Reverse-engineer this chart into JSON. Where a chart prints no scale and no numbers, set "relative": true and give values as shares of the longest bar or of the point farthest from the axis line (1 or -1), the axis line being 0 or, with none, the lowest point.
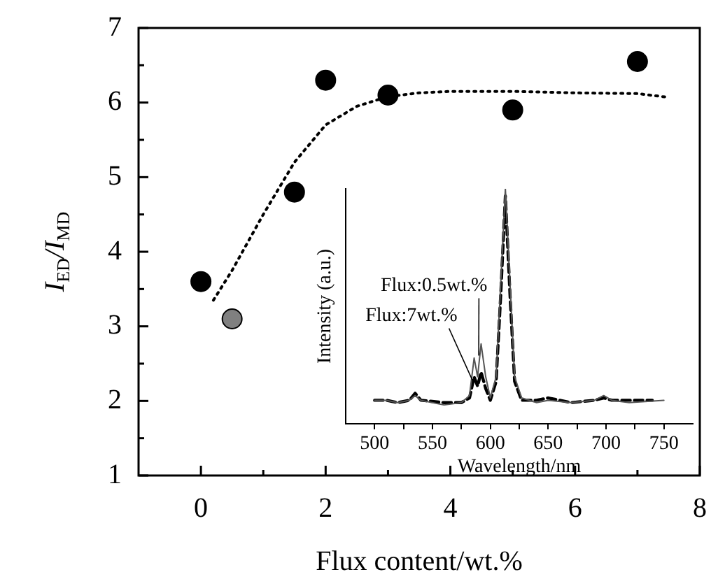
{
  "chart_data": [
    {
      "type": "scatter",
      "xlabel": "Flux content/wt.%",
      "ylabel": "I$_{ED}$/I$_{MD}$",
      "xlim": [
        -1,
        8
      ],
      "ylim": [
        1,
        7
      ],
      "xticks": [
        0,
        {
          "value": 1,
          "label": null
        },
        2,
        {
          "value": 3,
          "label": null
        },
        4,
        {
          "value": 5,
          "label": null
        },
        6,
        {
          "value": 7,
          "label": null
        },
        8
      ],
      "yticks": [
        1,
        {
          "value": 1.5,
          "label": null
        },
        2,
        {
          "value": 2.5,
          "label": null
        },
        3,
        {
          "value": 3.5,
          "label": null
        },
        4,
        {
          "value": 4.5,
          "label": null
        },
        5,
        {
          "value": 5.5,
          "label": null
        },
        6,
        {
          "value": 6.5,
          "label": null
        },
        7
      ],
      "marker": "circle",
      "grid": false,
      "legend": false,
      "series": [
        {
          "color": "#000000",
          "x": [
            0,
            1.5,
            2,
            3,
            5,
            7
          ],
          "values": [
            3.6,
            4.8,
            6.3,
            6.1,
            5.9,
            6.55
          ]
        },
        {
          "color": "#808080",
          "x": [
            0.5
          ],
          "values": [
            3.1
          ]
        },
        {
          "type": "line",
          "color": "#000000",
          "line_style": "dotted",
          "marker": "none",
          "x": [
            0.2,
            0.5,
            1,
            1.5,
            2,
            2.5,
            3,
            3.5,
            4,
            5,
            6,
            7,
            7.5
          ],
          "values": [
            3.35,
            3.75,
            4.5,
            5.2,
            5.7,
            5.95,
            6.08,
            6.13,
            6.15,
            6.15,
            6.13,
            6.12,
            6.07
          ]
        }
      ]
    },
    {
      "type": "line",
      "relative": true,
      "xlabel": "Wavelength/nm",
      "ylabel": "Intensity (a.u.)",
      "xlim": [
        475,
        775
      ],
      "xticks": [
        500,
        {
          "value": 525,
          "label": null
        },
        550,
        {
          "value": 575,
          "label": null
        },
        600,
        {
          "value": 625,
          "label": null
        },
        650,
        {
          "value": 675,
          "label": null
        },
        700,
        {
          "value": 725,
          "label": null
        },
        750
      ],
      "tick_labels": "x",
      "marker": "none",
      "grid": false,
      "legend": false,
      "annotations": [
        {
          "text": "Flux:0.5wt.%",
          "x": 590,
          "y": 0.29
        },
        {
          "text": "Flux:7wt.%",
          "x": 585,
          "y": 0.18
        }
      ],
      "series": [
        {
          "color": "#555555",
          "line_style": "solid",
          "x": [
            500,
            510,
            520,
            530,
            535,
            540,
            560,
            575,
            582,
            586,
            589,
            592,
            596,
            600,
            605,
            609,
            613,
            617,
            621,
            627,
            640,
            650,
            670,
            690,
            698,
            705,
            720,
            750
          ],
          "values": [
            0.1,
            0.1,
            0.09,
            0.1,
            0.12,
            0.1,
            0.08,
            0.09,
            0.12,
            0.28,
            0.2,
            0.34,
            0.2,
            0.11,
            0.2,
            0.6,
            1,
            0.6,
            0.2,
            0.11,
            0.09,
            0.1,
            0.09,
            0.1,
            0.12,
            0.1,
            0.09,
            0.1
          ]
        },
        {
          "color": "#000000",
          "line_style": "dashed",
          "x": [
            500,
            510,
            520,
            530,
            535,
            540,
            560,
            575,
            582,
            586,
            589,
            592,
            596,
            600,
            605,
            609,
            613,
            617,
            621,
            627,
            640,
            650,
            670,
            690,
            698,
            705,
            720,
            740
          ],
          "values": [
            0.1,
            0.1,
            0.09,
            0.1,
            0.13,
            0.1,
            0.09,
            0.09,
            0.11,
            0.2,
            0.16,
            0.22,
            0.15,
            0.1,
            0.18,
            0.55,
            0.97,
            0.55,
            0.18,
            0.1,
            0.1,
            0.11,
            0.09,
            0.1,
            0.11,
            0.1,
            0.1,
            0.1
          ]
        }
      ]
    }
  ]
}
